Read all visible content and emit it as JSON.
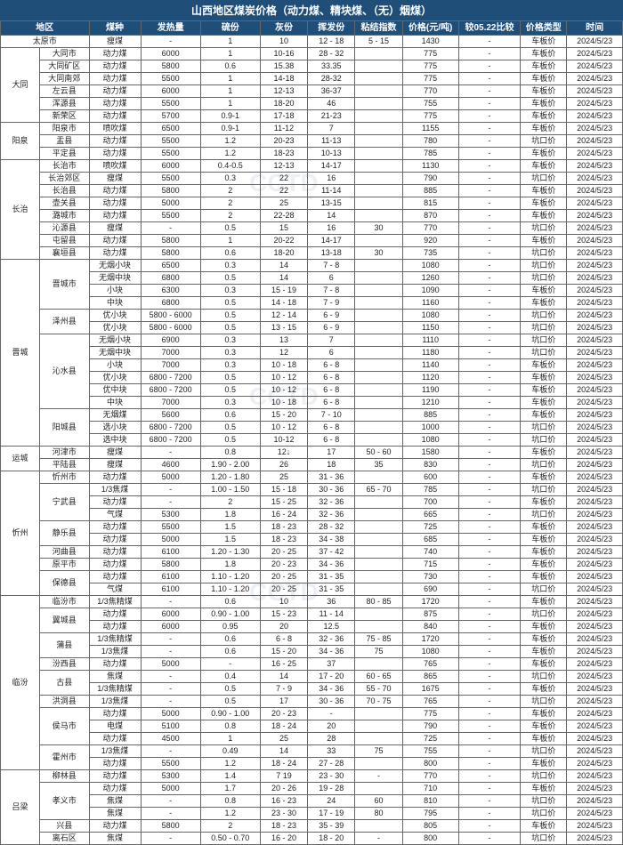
{
  "title": "山西地区煤炭价格（动力煤、精块煤、（无）烟煤）",
  "watermark": "CCTD",
  "columns": [
    "地区",
    "",
    "煤种",
    "发热量",
    "硫份",
    "灰份",
    "挥发份",
    "粘结指数",
    "价格(元/吨)",
    "较05.22比较",
    "价格类型",
    "时间"
  ],
  "date": "2024/5/23",
  "regions": [
    {
      "name": "太原市",
      "span": 1,
      "subs": [
        {
          "name": "",
          "rows": [
            [
              "瘦煤",
              "-",
              "1",
              "10",
              "12 - 18",
              "5 - 15",
              "1430",
              "-",
              "车板价"
            ]
          ]
        }
      ]
    },
    {
      "name": "大同",
      "span": 6,
      "subs": [
        {
          "name": "大同市",
          "rows": [
            [
              "动力煤",
              "6000",
              "1",
              "10-16",
              "28 - 32",
              "",
              "775",
              "-",
              "车板价"
            ]
          ]
        },
        {
          "name": "大同矿区",
          "rows": [
            [
              "动力煤",
              "5800",
              "0.6",
              "15.38",
              "33.35",
              "",
              "775",
              "-",
              "车板价"
            ]
          ]
        },
        {
          "name": "大同南郊",
          "rows": [
            [
              "动力煤",
              "5500",
              "1",
              "14-18",
              "28-32",
              "",
              "775",
              "-",
              "车板价"
            ]
          ]
        },
        {
          "name": "左云县",
          "rows": [
            [
              "动力煤",
              "6000",
              "1",
              "12-13",
              "36-37",
              "",
              "770",
              "-",
              "车板价"
            ]
          ]
        },
        {
          "name": "浑源县",
          "rows": [
            [
              "动力煤",
              "5500",
              "1",
              "18-20",
              "46",
              "",
              "755",
              "-",
              "车板价"
            ]
          ]
        },
        {
          "name": "新荣区",
          "rows": [
            [
              "动力煤",
              "5700",
              "0.9-1",
              "17-18",
              "21-23",
              "",
              "775",
              "-",
              "车板价"
            ]
          ]
        }
      ]
    },
    {
      "name": "阳泉",
      "span": 3,
      "subs": [
        {
          "name": "阳泉市",
          "rows": [
            [
              "喷吹煤",
              "6500",
              "0.9-1",
              "11-12",
              "7",
              "",
              "1155",
              "-",
              "车板价"
            ]
          ]
        },
        {
          "name": "盂县",
          "rows": [
            [
              "动力煤",
              "5500",
              "1.2",
              "20-23",
              "11-13",
              "",
              "780",
              "-",
              "坑口价"
            ]
          ]
        },
        {
          "name": "平定县",
          "rows": [
            [
              "动力煤",
              "5500",
              "1.2",
              "18-23",
              "10-13",
              "",
              "785",
              "-",
              "车板价"
            ]
          ]
        }
      ]
    },
    {
      "name": "长治",
      "span": 8,
      "subs": [
        {
          "name": "长治市",
          "rows": [
            [
              "喷吹煤",
              "6000",
              "0.4-0.5",
              "12-13",
              "14-17",
              "",
              "1130",
              "-",
              "车板价"
            ]
          ]
        },
        {
          "name": "长治郊区",
          "rows": [
            [
              "瘦煤",
              "5500",
              "0.3",
              "22",
              "16",
              "",
              "790",
              "-",
              "坑口价"
            ]
          ]
        },
        {
          "name": "长治县",
          "rows": [
            [
              "动力煤",
              "5800",
              "2",
              "22",
              "11-14",
              "",
              "885",
              "-",
              "车板价"
            ]
          ]
        },
        {
          "name": "壶关县",
          "rows": [
            [
              "动力煤",
              "5000",
              "2",
              "25",
              "13-15",
              "",
              "815",
              "-",
              "车板价"
            ]
          ]
        },
        {
          "name": "潞城市",
          "rows": [
            [
              "动力煤",
              "5500",
              "2",
              "22-28",
              "14",
              "",
              "870",
              "-",
              "车板价"
            ]
          ]
        },
        {
          "name": "沁源县",
          "rows": [
            [
              "瘦煤",
              "-",
              "0.5",
              "15",
              "16",
              "30",
              "770",
              "-",
              "坑口价"
            ]
          ]
        },
        {
          "name": "屯留县",
          "rows": [
            [
              "动力煤",
              "5800",
              "1",
              "20-22",
              "14-17",
              "",
              "920",
              "-",
              "车板价"
            ]
          ]
        },
        {
          "name": "襄垣县",
          "rows": [
            [
              "动力煤",
              "5800",
              "0.6",
              "18-20",
              "13-18",
              "30",
              "735",
              "-",
              "坑口价"
            ]
          ]
        }
      ]
    },
    {
      "name": "晋城",
      "span": 15,
      "subs": [
        {
          "name": "晋城市",
          "span": 4,
          "rows": [
            [
              "无烟小块",
              "6500",
              "0.3",
              "14",
              "7 - 8",
              "",
              "1080",
              "-",
              "坑口价"
            ],
            [
              "无烟中块",
              "6800",
              "0.5",
              "14",
              "6",
              "",
              "1260",
              "-",
              "坑口价"
            ],
            [
              "小块",
              "6300",
              "0.3",
              "15 - 19",
              "7 - 8",
              "",
              "1090",
              "-",
              "车板价"
            ],
            [
              "中块",
              "6800",
              "0.5",
              "14 - 18",
              "7 - 9",
              "",
              "1160",
              "-",
              "车板价"
            ]
          ]
        },
        {
          "name": "泽州县",
          "span": 2,
          "rows": [
            [
              "优小块",
              "5800 - 6000",
              "0.5",
              "12 - 14",
              "6 - 9",
              "",
              "1080",
              "-",
              "坑口价"
            ],
            [
              "优小块",
              "5800 - 6000",
              "0.5",
              "13 - 15",
              "6 - 9",
              "",
              "1150",
              "-",
              "坑口价"
            ]
          ]
        },
        {
          "name": "沁水县",
          "span": 6,
          "rows": [
            [
              "无烟小块",
              "6900",
              "0.3",
              "13",
              "7",
              "",
              "1110",
              "-",
              "坑口价"
            ],
            [
              "无烟中块",
              "7000",
              "0.3",
              "12",
              "6",
              "",
              "1180",
              "-",
              "坑口价"
            ],
            [
              "小块",
              "7000",
              "0.3",
              "10 - 18",
              "6 - 8",
              "",
              "1140",
              "-",
              "车板价"
            ],
            [
              "优小块",
              "6800 - 7200",
              "0.5",
              "10 - 12",
              "6 - 8",
              "",
              "1120",
              "-",
              "车板价"
            ],
            [
              "优中块",
              "6800 - 7200",
              "0.5",
              "10 - 12",
              "6 - 8",
              "",
              "1190",
              "-",
              "车板价"
            ],
            [
              "中块",
              "7000",
              "0.3",
              "10 - 18",
              "6 - 8",
              "",
              "1210",
              "-",
              "车板价"
            ]
          ]
        },
        {
          "name": "阳城县",
          "span": 3,
          "rows": [
            [
              "无烟煤",
              "5600",
              "0.6",
              "15 - 20",
              "7 - 10",
              "",
              "885",
              "-",
              "车板价"
            ],
            [
              "选小块",
              "6800 - 7200",
              "0.5",
              "10 - 12",
              "6 - 8",
              "",
              "1000",
              "-",
              "坑口价"
            ],
            [
              "选中块",
              "6800 - 7200",
              "0.5",
              "10-12",
              "6 - 8",
              "",
              "1080",
              "-",
              "坑口价"
            ]
          ]
        }
      ]
    },
    {
      "name": "运城",
      "span": 2,
      "subs": [
        {
          "name": "河津市",
          "rows": [
            [
              "瘦煤",
              "-",
              "0.8",
              "12↓",
              "17",
              "50 - 60",
              "1580",
              "-",
              "车板价"
            ]
          ]
        },
        {
          "name": "平陆县",
          "rows": [
            [
              "瘦煤",
              "4600",
              "1.90 - 2.00",
              "26",
              "18",
              "35",
              "830",
              "-",
              "坑口价"
            ]
          ]
        }
      ]
    },
    {
      "name": "忻州",
      "span": 10,
      "subs": [
        {
          "name": "忻州市",
          "rows": [
            [
              "动力煤",
              "5000",
              "1.20 - 1.80",
              "25",
              "31 - 36",
              "",
              "600",
              "-",
              "车板价"
            ]
          ]
        },
        {
          "name": "宁武县",
          "span": 3,
          "rows": [
            [
              "1/3焦煤",
              "-",
              "1.00 - 1.50",
              "15 - 18",
              "30 - 36",
              "65 - 70",
              "785",
              "-",
              "坑口价"
            ],
            [
              "动力煤",
              "-",
              "2",
              "15 - 25",
              "32 - 36",
              "",
              "700",
              "-",
              "车板价"
            ],
            [
              "气煤",
              "5300",
              "1.8",
              "16 - 24",
              "32 - 36",
              "",
              "665",
              "-",
              "坑口价"
            ]
          ]
        },
        {
          "name": "静乐县",
          "span": 2,
          "rows": [
            [
              "动力煤",
              "5500",
              "1.5",
              "18 - 23",
              "28 - 32",
              "",
              "725",
              "-",
              "车板价"
            ],
            [
              "动力煤",
              "5000",
              "1.5",
              "18 - 23",
              "34 - 38",
              "",
              "685",
              "-",
              "车板价"
            ]
          ]
        },
        {
          "name": "河曲县",
          "rows": [
            [
              "动力煤",
              "6100",
              "1.20 - 1.30",
              "20 - 25",
              "37 - 42",
              "",
              "740",
              "-",
              "车板价"
            ]
          ]
        },
        {
          "name": "原平市",
          "rows": [
            [
              "动力煤",
              "5800",
              "1.8",
              "20 - 23",
              "34 - 36",
              "",
              "715",
              "-",
              "车板价"
            ]
          ]
        },
        {
          "name": "保德县",
          "span": 2,
          "rows": [
            [
              "动力煤",
              "6100",
              "1.10 - 1.20",
              "20 - 25",
              "31 - 35",
              "",
              "730",
              "-",
              "车板价"
            ],
            [
              "气煤",
              "6100",
              "1.10 - 1.20",
              "20 - 25",
              "31 - 35",
              "",
              "690",
              "-",
              "坑口价"
            ]
          ]
        }
      ]
    },
    {
      "name": "临汾",
      "span": 14,
      "subs": [
        {
          "name": "临汾市",
          "rows": [
            [
              "1/3焦精煤",
              "-",
              "0.6",
              "10",
              "36",
              "80 - 85",
              "1720",
              "-",
              "车板价"
            ]
          ]
        },
        {
          "name": "翼城县",
          "span": 2,
          "rows": [
            [
              "动力煤",
              "6000",
              "0.90 - 1.00",
              "15 - 23",
              "11 - 14",
              "",
              "875",
              "-",
              "坑口价"
            ],
            [
              "动力煤",
              "6000",
              "0.95",
              "20",
              "12.5",
              "",
              "840",
              "-",
              "车板价"
            ]
          ]
        },
        {
          "name": "蒲县",
          "span": 2,
          "rows": [
            [
              "1/3焦精煤",
              "-",
              "0.6",
              "6 - 8",
              "32 - 36",
              "75 - 85",
              "1720",
              "-",
              "车板价"
            ],
            [
              "1/3焦煤",
              "-",
              "0.6",
              "15 - 20",
              "34 - 36",
              "75",
              "1080",
              "-",
              "车板价"
            ]
          ]
        },
        {
          "name": "汾西县",
          "rows": [
            [
              "动力煤",
              "5000",
              "-",
              "16 - 25",
              "37",
              "",
              "765",
              "-",
              "车板价"
            ]
          ]
        },
        {
          "name": "古县",
          "span": 2,
          "rows": [
            [
              "焦煤",
              "-",
              "0.4",
              "14",
              "17 - 20",
              "60 - 65",
              "865",
              "-",
              "坑口价"
            ],
            [
              "1/3焦精煤",
              "-",
              "0.5",
              "7 - 9",
              "34 - 36",
              "55 - 70",
              "1675",
              "-",
              "车板价"
            ]
          ]
        },
        {
          "name": "洪洞县",
          "rows": [
            [
              "1/3焦煤",
              "-",
              "0.5",
              "17",
              "30 - 36",
              "70 - 75",
              "765",
              "-",
              "坑口价"
            ]
          ]
        },
        {
          "name": "侯马市",
          "span": 3,
          "rows": [
            [
              "动力煤",
              "5000",
              "0.90 - 1.00",
              "20 - 23",
              "-",
              "",
              "775",
              "-",
              "车板价"
            ],
            [
              "电煤",
              "5100",
              "0.8",
              "18 - 24",
              "20",
              "",
              "790",
              "-",
              "车板价"
            ],
            [
              "动力煤",
              "4500",
              "1",
              "25",
              "28",
              "",
              "725",
              "-",
              "车板价"
            ]
          ]
        },
        {
          "name": "霍州市",
          "span": 2,
          "rows": [
            [
              "1/3焦煤",
              "-",
              "0.49",
              "14",
              "33",
              "75",
              "755",
              "-",
              "坑口价"
            ],
            [
              "动力煤",
              "5500",
              "1.2",
              "18 - 24",
              "27 - 28",
              "",
              "800",
              "-",
              "车板价"
            ]
          ]
        }
      ]
    },
    {
      "name": "吕梁",
      "span": 6,
      "subs": [
        {
          "name": "柳林县",
          "rows": [
            [
              "动力煤",
              "5300",
              "1.4",
              "7 19",
              "23 - 30",
              "-",
              "770",
              "-",
              "坑口价"
            ]
          ]
        },
        {
          "name": "孝义市",
          "span": 3,
          "rows": [
            [
              "动力煤",
              "5000",
              "1.7",
              "20 - 26",
              "19 - 28",
              "",
              "710",
              "-",
              "车板价"
            ],
            [
              "焦煤",
              "-",
              "0.8",
              "16 - 23",
              "24",
              "60",
              "810",
              "-",
              "坑口价"
            ],
            [
              "焦煤",
              "-",
              "1.2",
              "23 - 30",
              "17 - 19",
              "80",
              "795",
              "-",
              "坑口价"
            ]
          ]
        },
        {
          "name": "兴县",
          "rows": [
            [
              "动力煤",
              "5800",
              "2",
              "18 - 23",
              "35 - 39",
              "",
              "805",
              "-",
              "车板价"
            ]
          ]
        },
        {
          "name": "离石区",
          "rows": [
            [
              "焦煤",
              "-",
              "0.50 - 0.70",
              "16 - 20",
              "18 - 20",
              "-",
              "800",
              "-",
              "坑口价"
            ]
          ]
        }
      ]
    }
  ]
}
